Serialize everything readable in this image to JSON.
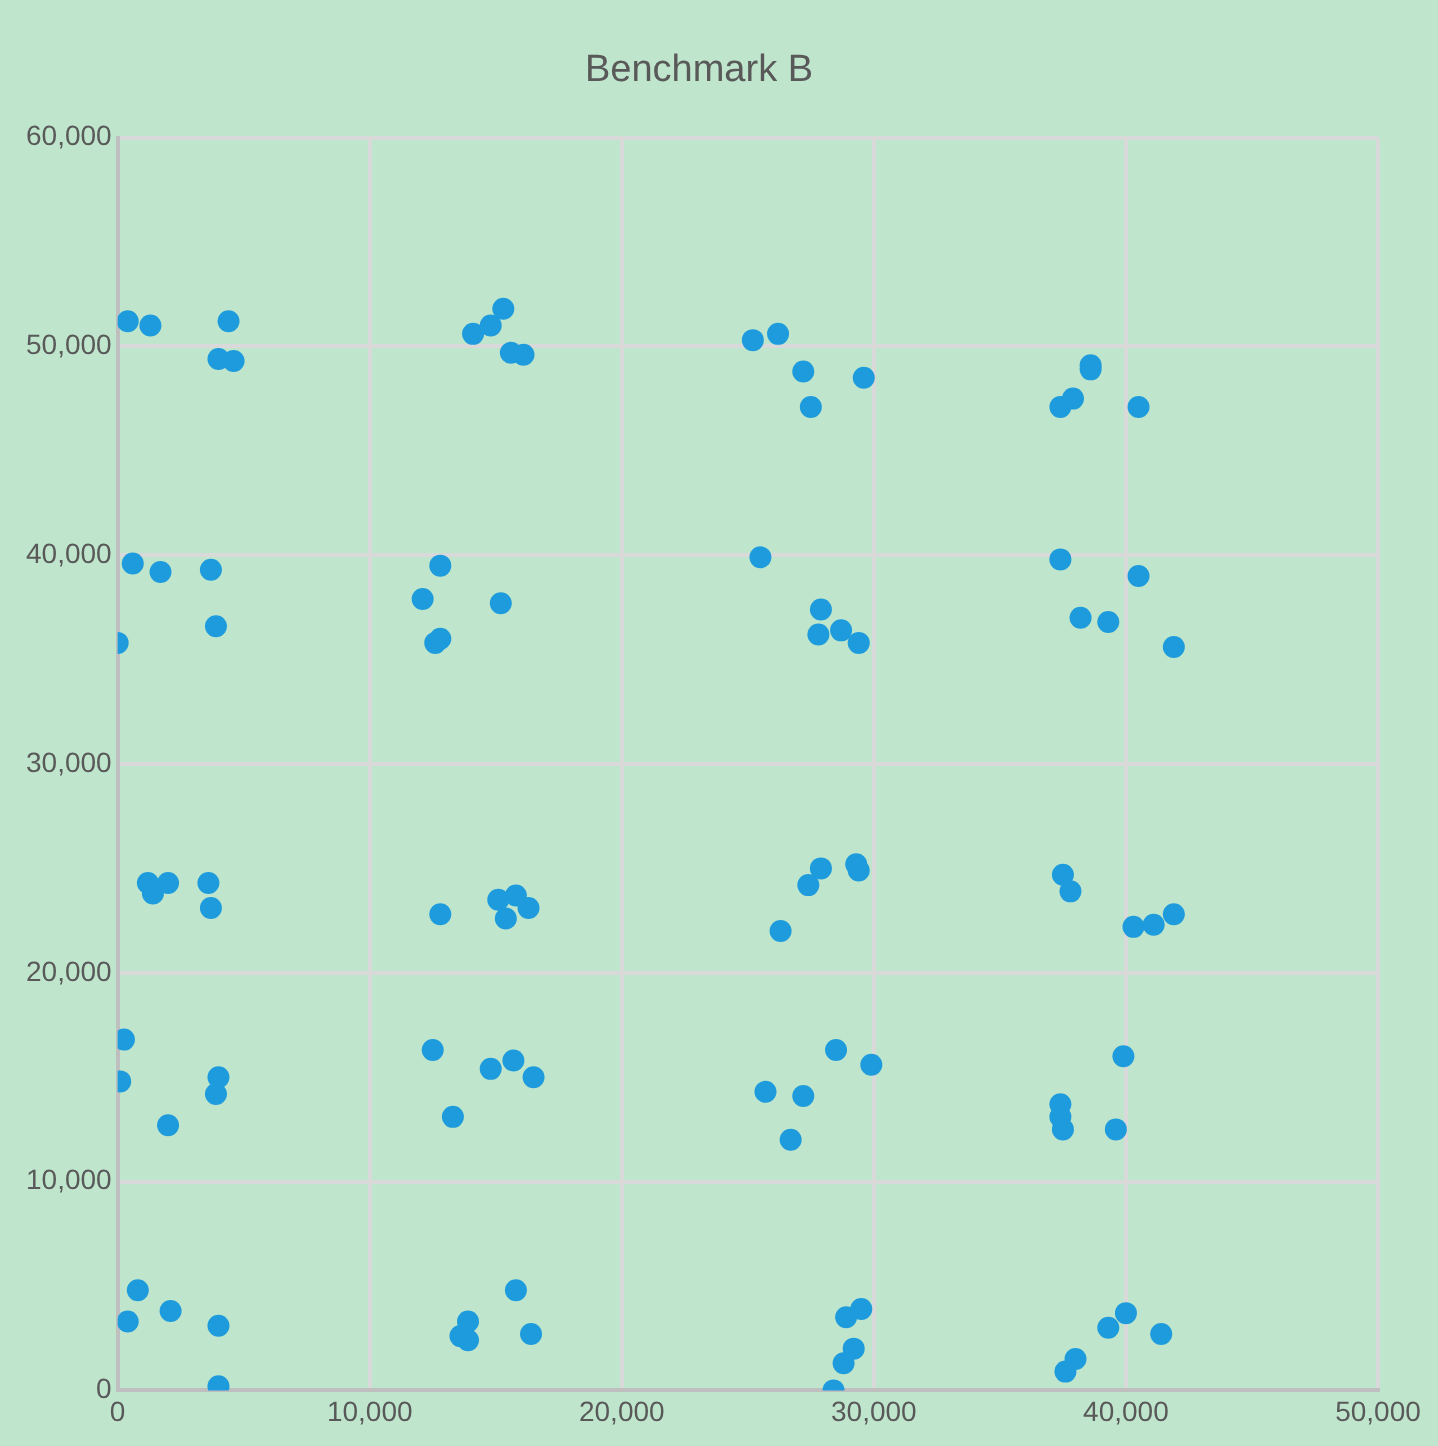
{
  "chart_data": {
    "type": "scatter",
    "title": "Benchmark B",
    "x": [
      400,
      1300,
      4400,
      4000,
      4600,
      14100,
      14800,
      15300,
      15600,
      16100,
      25200,
      26200,
      27200,
      27500,
      29600,
      37400,
      37900,
      38600,
      38600,
      40500,
      600,
      1700,
      3700,
      3900,
      0,
      12800,
      12100,
      12600,
      12800,
      15200,
      25500,
      27900,
      27800,
      28700,
      29400,
      37400,
      40500,
      38200,
      39300,
      41900,
      1200,
      1400,
      2000,
      3600,
      3700,
      12800,
      15100,
      15800,
      15400,
      16300,
      26300,
      27400,
      27900,
      29300,
      29400,
      37500,
      37800,
      40300,
      41100,
      41900,
      250,
      100,
      2000,
      4000,
      3900,
      12500,
      13300,
      14800,
      15700,
      16500,
      25700,
      27200,
      26700,
      28500,
      29900,
      37400,
      37400,
      37500,
      39900,
      39600,
      800,
      400,
      2100,
      4000,
      4000,
      13900,
      13600,
      13900,
      15800,
      16400,
      28900,
      29500,
      29200,
      28800,
      28400,
      37600,
      38000,
      39300,
      40000,
      41400
    ],
    "series": [
      {
        "color": "#1e9bdc",
        "values": [
          51200,
          51000,
          51200,
          49400,
          49300,
          50600,
          51000,
          51800,
          49700,
          49600,
          50300,
          50600,
          48800,
          47100,
          48500,
          47100,
          47500,
          49100,
          48900,
          47100,
          39600,
          39200,
          39300,
          36600,
          35800,
          39500,
          37900,
          35800,
          36000,
          37700,
          39900,
          37400,
          36200,
          36400,
          35800,
          39800,
          39000,
          37000,
          36800,
          35600,
          24300,
          23800,
          24300,
          24300,
          23100,
          22800,
          23500,
          23700,
          22600,
          23100,
          22000,
          24200,
          25000,
          25200,
          24900,
          24700,
          23900,
          22200,
          22300,
          22800,
          16800,
          14800,
          12700,
          15000,
          14200,
          16300,
          13100,
          15400,
          15800,
          15000,
          14300,
          14100,
          12000,
          16300,
          15600,
          13700,
          13100,
          12500,
          16000,
          12500,
          4800,
          3300,
          3800,
          3100,
          200,
          2400,
          2600,
          3300,
          4800,
          2700,
          3500,
          3900,
          2000,
          1300,
          0,
          900,
          1500,
          3000,
          3700,
          2700
        ]
      }
    ],
    "xlim": [
      0,
      50000
    ],
    "xticks": [
      0,
      {
        "value": 10000,
        "label": "10,000"
      },
      {
        "value": 20000,
        "label": "20,000"
      },
      {
        "value": 30000,
        "label": "30,000"
      },
      {
        "value": 40000,
        "label": "40,000"
      },
      {
        "value": 50000,
        "label": "50,000"
      }
    ],
    "ylim": [
      0,
      60000
    ],
    "yticks": [
      0,
      {
        "value": 10000,
        "label": "10,000"
      },
      {
        "value": 20000,
        "label": "20,000"
      },
      {
        "value": 30000,
        "label": "30,000"
      },
      {
        "value": 40000,
        "label": "40,000"
      },
      {
        "value": 50000,
        "label": "50,000"
      },
      {
        "value": 60000,
        "label": "60,000"
      }
    ],
    "grid": true,
    "legend": false,
    "marker": "circle"
  }
}
